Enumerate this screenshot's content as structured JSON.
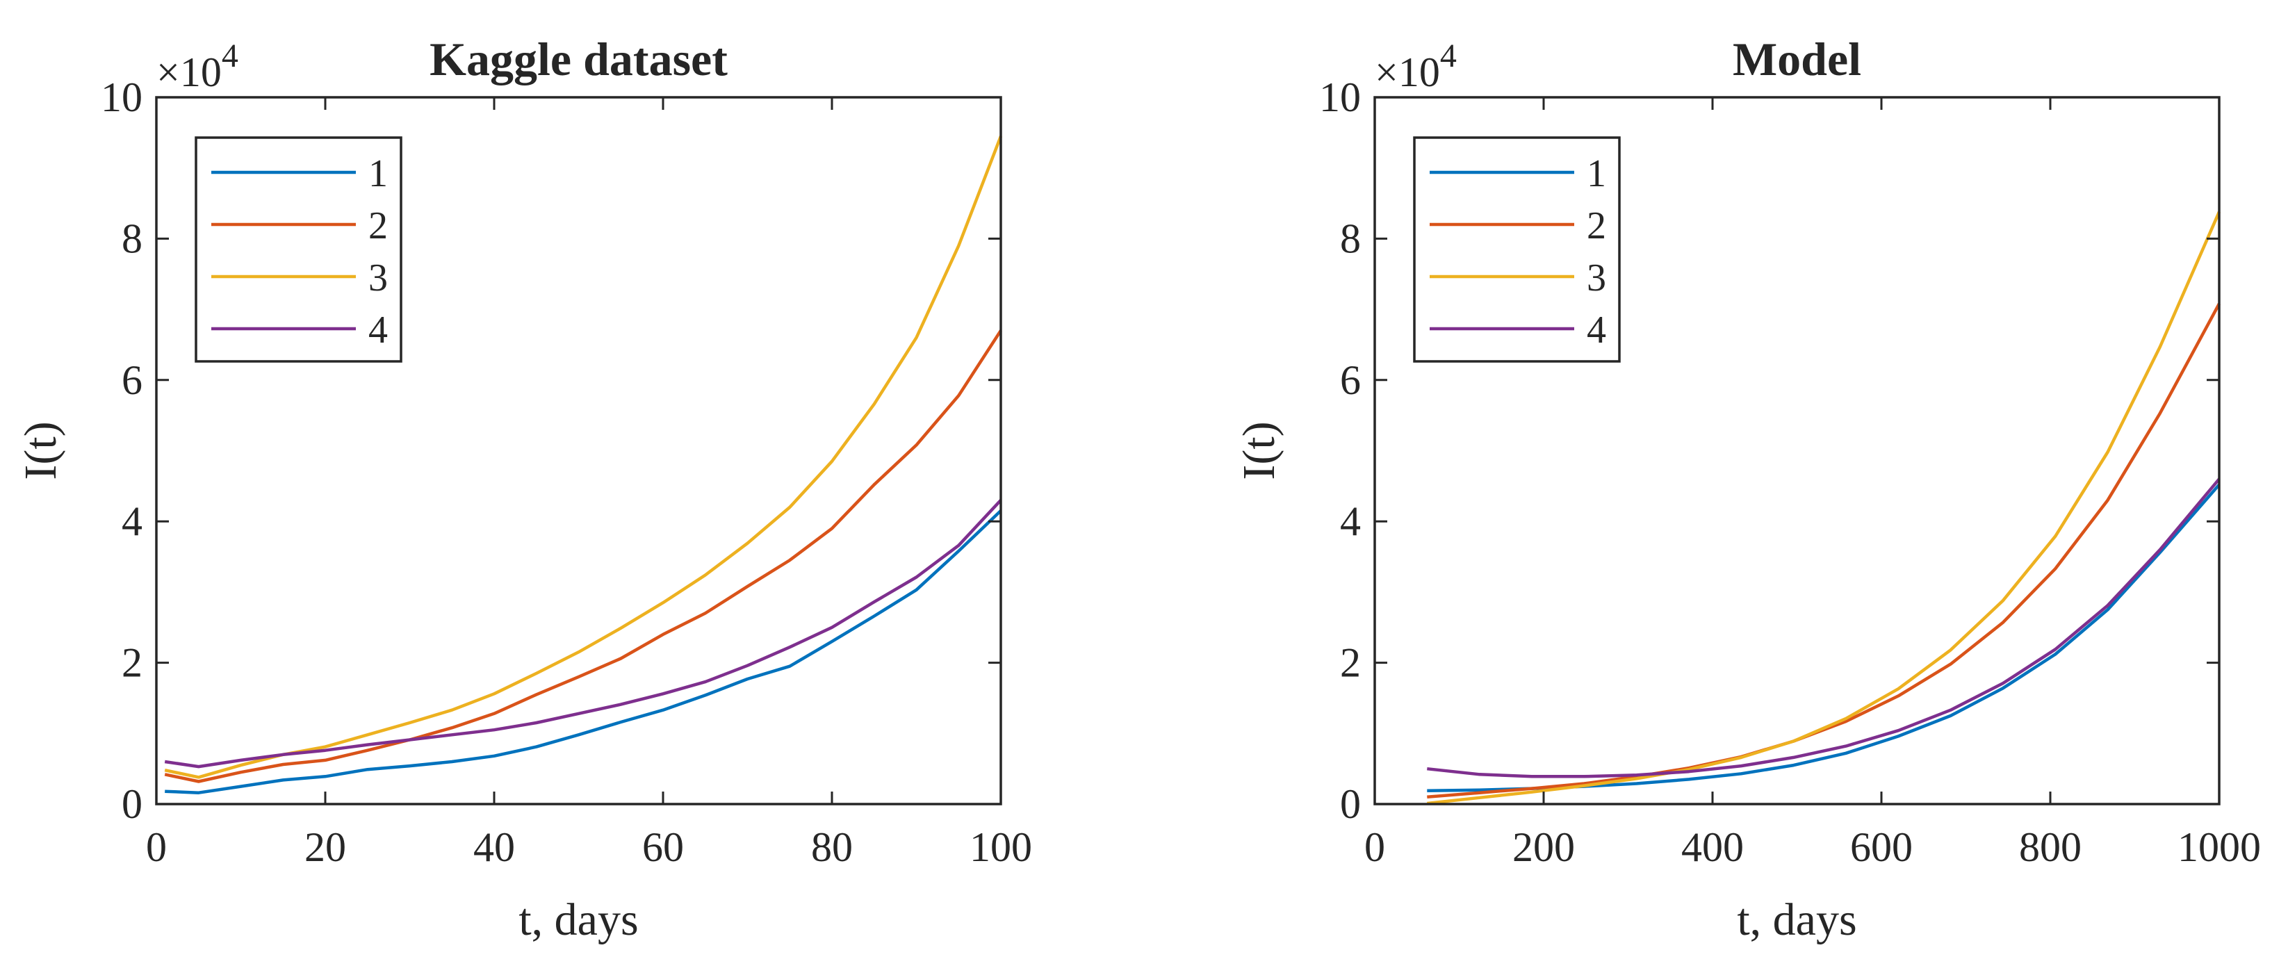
{
  "figure": {
    "panels": 2
  },
  "chart_data": [
    {
      "type": "line",
      "title": "Kaggle dataset",
      "xlabel": "t, days",
      "ylabel": "I(t)",
      "xlim": [
        0,
        100
      ],
      "ylim": [
        0,
        100000
      ],
      "xticks": [
        0,
        20,
        40,
        60,
        80,
        100
      ],
      "xtick_labels": [
        "0",
        "20",
        "40",
        "60",
        "80",
        "100"
      ],
      "yticks": [
        0,
        20000,
        40000,
        60000,
        80000,
        100000
      ],
      "ytick_labels": [
        "0",
        "2",
        "4",
        "6",
        "8",
        "10"
      ],
      "y_exponent_label": "×10",
      "y_exponent_power": "4",
      "legend_position": "top-left",
      "series": [
        {
          "name": "1",
          "color": "#0072BD",
          "x": [
            1,
            5,
            10,
            15,
            20,
            25,
            30,
            35,
            40,
            45,
            50,
            55,
            60,
            65,
            70,
            75,
            80,
            85,
            90,
            95,
            100
          ],
          "y": [
            1800,
            1600,
            2500,
            3400,
            3900,
            4900,
            5400,
            6000,
            6800,
            8100,
            9800,
            11600,
            13300,
            15400,
            17700,
            19500,
            23000,
            26600,
            30300,
            35800,
            41500
          ]
        },
        {
          "name": "2",
          "color": "#D95319",
          "x": [
            1,
            5,
            10,
            15,
            20,
            25,
            30,
            35,
            40,
            45,
            50,
            55,
            60,
            65,
            70,
            75,
            80,
            85,
            90,
            95,
            100
          ],
          "y": [
            4200,
            3200,
            4500,
            5600,
            6200,
            7600,
            9100,
            10800,
            12800,
            15500,
            18000,
            20600,
            24000,
            27000,
            30800,
            34500,
            39000,
            45200,
            50800,
            57800,
            67000
          ]
        },
        {
          "name": "3",
          "color": "#EDB120",
          "x": [
            1,
            5,
            10,
            15,
            20,
            25,
            30,
            35,
            40,
            45,
            50,
            55,
            60,
            65,
            70,
            75,
            80,
            85,
            90,
            95,
            100
          ],
          "y": [
            4800,
            3800,
            5500,
            7000,
            8100,
            9800,
            11500,
            13300,
            15600,
            18500,
            21500,
            24900,
            28500,
            32400,
            36900,
            42000,
            48500,
            56600,
            66000,
            79000,
            94500
          ]
        },
        {
          "name": "4",
          "color": "#7E2F8E",
          "x": [
            1,
            5,
            10,
            15,
            20,
            25,
            30,
            35,
            40,
            45,
            50,
            55,
            60,
            65,
            70,
            75,
            80,
            85,
            90,
            95,
            100
          ],
          "y": [
            6000,
            5300,
            6200,
            7000,
            7600,
            8400,
            9100,
            9800,
            10500,
            11500,
            12800,
            14100,
            15600,
            17300,
            19600,
            22200,
            25000,
            28600,
            32100,
            36600,
            43000
          ]
        }
      ]
    },
    {
      "type": "line",
      "title": "Model",
      "xlabel": "t, days",
      "ylabel": "I(t)",
      "xlim": [
        0,
        1000
      ],
      "ylim": [
        0,
        100000
      ],
      "xticks": [
        0,
        200,
        400,
        600,
        800,
        1000
      ],
      "xtick_labels": [
        "0",
        "200",
        "400",
        "600",
        "800",
        "1000"
      ],
      "yticks": [
        0,
        20000,
        40000,
        60000,
        80000,
        100000
      ],
      "ytick_labels": [
        "0",
        "2",
        "4",
        "6",
        "8",
        "10"
      ],
      "y_exponent_label": "×10",
      "y_exponent_power": "4",
      "legend_position": "top-left",
      "series": [
        {
          "name": "1",
          "color": "#0072BD",
          "x": [
            62,
            124,
            186,
            248,
            310,
            372,
            434,
            496,
            558,
            620,
            682,
            744,
            806,
            868,
            930,
            1000
          ],
          "y": [
            1900,
            2000,
            2200,
            2500,
            2900,
            3500,
            4300,
            5500,
            7200,
            9600,
            12500,
            16400,
            21200,
            27500,
            35600,
            45200
          ]
        },
        {
          "name": "2",
          "color": "#D95319",
          "x": [
            62,
            124,
            186,
            248,
            310,
            372,
            434,
            496,
            558,
            620,
            682,
            744,
            806,
            868,
            930,
            1000
          ],
          "y": [
            1000,
            1600,
            2200,
            2900,
            3900,
            5100,
            6700,
            8900,
            11700,
            15300,
            19800,
            25700,
            33300,
            43000,
            55300,
            70800
          ]
        },
        {
          "name": "3",
          "color": "#EDB120",
          "x": [
            62,
            124,
            186,
            248,
            310,
            372,
            434,
            496,
            558,
            620,
            682,
            744,
            806,
            868,
            930,
            1000
          ],
          "y": [
            100,
            900,
            1700,
            2600,
            3600,
            4900,
            6600,
            8900,
            12100,
            16300,
            21800,
            28800,
            37900,
            49800,
            64700,
            83800
          ]
        },
        {
          "name": "4",
          "color": "#7E2F8E",
          "x": [
            62,
            124,
            186,
            248,
            310,
            372,
            434,
            496,
            558,
            620,
            682,
            744,
            806,
            868,
            930,
            1000
          ],
          "y": [
            5000,
            4200,
            3900,
            3900,
            4100,
            4600,
            5400,
            6600,
            8200,
            10400,
            13300,
            17100,
            21900,
            28100,
            36000,
            46000
          ]
        }
      ]
    }
  ]
}
